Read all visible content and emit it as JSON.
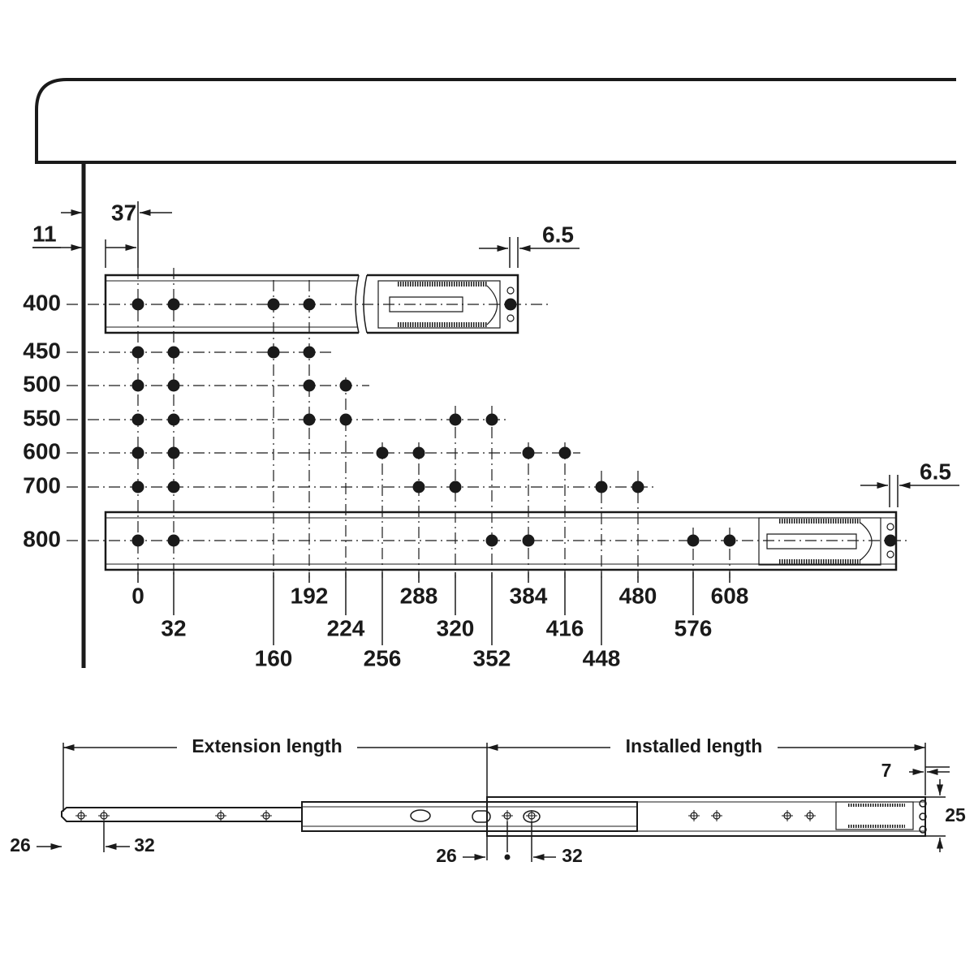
{
  "dimensions": {
    "wall_offset": "37",
    "panel": "11",
    "top_end": "6.5",
    "bottom_end": "6.5"
  },
  "rows": [
    "400",
    "450",
    "500",
    "550",
    "600",
    "700",
    "800"
  ],
  "columns": [
    "0",
    "32",
    "160",
    "192",
    "224",
    "256",
    "288",
    "320",
    "352",
    "384",
    "416",
    "448",
    "480",
    "576",
    "608"
  ],
  "slide": {
    "extension": "Extension length",
    "installed": "Installed length",
    "end_gap": "7",
    "height": "25",
    "front_offset": "26",
    "front_pitch": "32",
    "rear_offset": "26",
    "rear_pitch": "32"
  }
}
